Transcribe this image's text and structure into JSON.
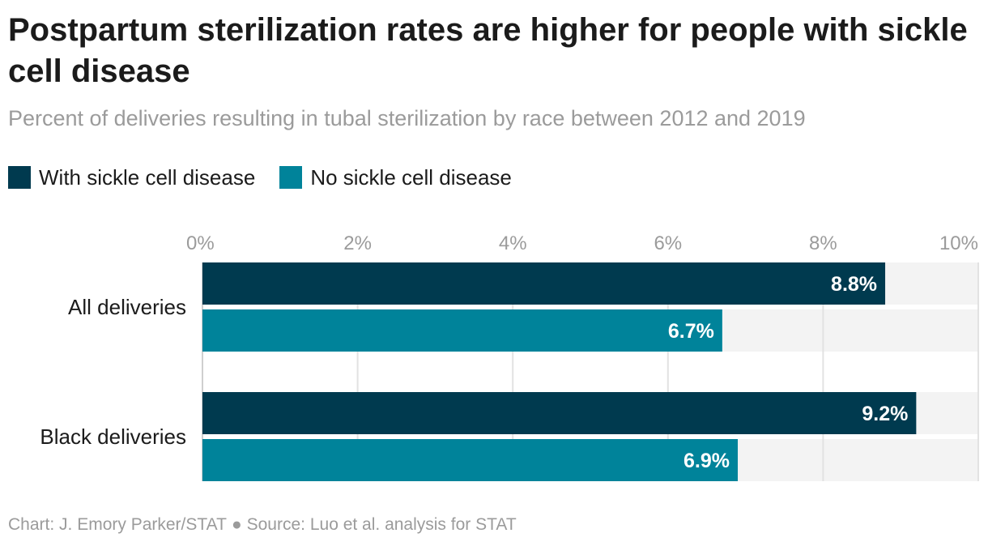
{
  "chart_data": {
    "type": "bar",
    "orientation": "horizontal",
    "title": "Postpartum sterilization rates are higher for people with sickle cell disease",
    "subtitle": "Percent of deliveries resulting in tubal sterilization by race between 2012 and 2019",
    "categories": [
      "All deliveries",
      "Black deliveries"
    ],
    "series": [
      {
        "name": "With sickle cell disease",
        "color": "#003a4f",
        "values": [
          8.8,
          9.2
        ],
        "labels": [
          "8.8%",
          "9.2%"
        ]
      },
      {
        "name": "No sickle cell disease",
        "color": "#00839a",
        "values": [
          6.7,
          6.9
        ],
        "labels": [
          "6.7%",
          "6.9%"
        ]
      }
    ],
    "xlim": [
      0,
      10
    ],
    "xticks": [
      0,
      2,
      4,
      6,
      8,
      10
    ],
    "xtick_labels": [
      "0%",
      "2%",
      "4%",
      "6%",
      "8%",
      "10%"
    ],
    "xaxis_position": "top",
    "grid": true,
    "legend_position": "top-left",
    "background_track_color": "#f3f3f3",
    "grid_color": "#e2e2e2"
  },
  "footer": {
    "chart_credit": "Chart: J. Emory Parker/STAT",
    "separator": "●",
    "source": "Source: Luo et al. analysis for STAT"
  }
}
